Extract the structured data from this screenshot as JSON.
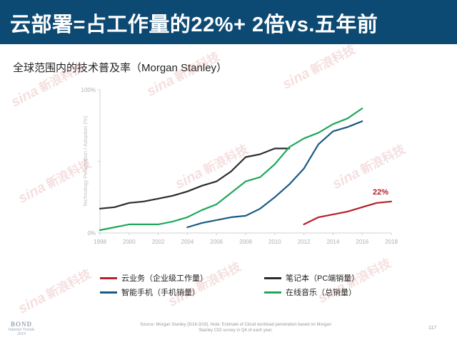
{
  "header": {
    "title": "云部署=占工作量的22%+ 2倍vs.五年前"
  },
  "subtitle": "全球范围内的技术普及率（Morgan Stanley）",
  "chart_data": {
    "type": "line",
    "ylabel": "Technology Penetration / Adoption (%)",
    "xlim": [
      1998,
      2018
    ],
    "ylim": [
      0,
      100
    ],
    "x_ticks": [
      "1998",
      "2000",
      "2002",
      "2004",
      "2006",
      "2008",
      "2010",
      "2012",
      "2014",
      "2016",
      "2018"
    ],
    "y_ticks": [
      {
        "value": 0,
        "label": "0%"
      },
      {
        "value": 50,
        "label": ""
      },
      {
        "value": 100,
        "label": "100%"
      }
    ],
    "grid": false,
    "legend_position": "bottom",
    "series": [
      {
        "name": "云业务（企业级工作量）",
        "color": "#b5202a",
        "points": [
          [
            2012,
            6
          ],
          [
            2013,
            11
          ],
          [
            2014,
            13
          ],
          [
            2015,
            15
          ],
          [
            2016,
            18
          ],
          [
            2017,
            21
          ],
          [
            2018,
            22
          ]
        ]
      },
      {
        "name": "笔记本（PC端销量）",
        "color": "#2b2b2b",
        "points": [
          [
            1998,
            17
          ],
          [
            1999,
            18
          ],
          [
            2000,
            21
          ],
          [
            2001,
            22
          ],
          [
            2002,
            24
          ],
          [
            2003,
            26
          ],
          [
            2004,
            29
          ],
          [
            2005,
            33
          ],
          [
            2006,
            36
          ],
          [
            2007,
            43
          ],
          [
            2008,
            53
          ],
          [
            2009,
            55
          ],
          [
            2010,
            59
          ],
          [
            2011,
            59
          ]
        ]
      },
      {
        "name": "智能手机（手机销量）",
        "color": "#1a5a82",
        "points": [
          [
            2004,
            4
          ],
          [
            2005,
            7
          ],
          [
            2006,
            9
          ],
          [
            2007,
            11
          ],
          [
            2008,
            12
          ],
          [
            2009,
            17
          ],
          [
            2010,
            25
          ],
          [
            2011,
            34
          ],
          [
            2012,
            45
          ],
          [
            2013,
            62
          ],
          [
            2014,
            71
          ],
          [
            2015,
            74
          ],
          [
            2016,
            78
          ]
        ]
      },
      {
        "name": "在线音乐（总销量）",
        "color": "#1fa85c",
        "points": [
          [
            1998,
            2
          ],
          [
            1999,
            4
          ],
          [
            2000,
            6
          ],
          [
            2001,
            6
          ],
          [
            2002,
            6
          ],
          [
            2003,
            8
          ],
          [
            2004,
            11
          ],
          [
            2005,
            16
          ],
          [
            2006,
            20
          ],
          [
            2007,
            28
          ],
          [
            2008,
            36
          ],
          [
            2009,
            39
          ],
          [
            2010,
            48
          ],
          [
            2011,
            60
          ],
          [
            2012,
            66
          ],
          [
            2013,
            70
          ],
          [
            2014,
            76
          ],
          [
            2015,
            80
          ],
          [
            2016,
            87
          ]
        ]
      }
    ],
    "annotations": [
      {
        "text": "22%",
        "x": 2018,
        "y": 22,
        "color": "#b5202a"
      }
    ]
  },
  "footer": {
    "source": "Source: Morgan Stanley (5/16-3/19). Note: Estimate of Cloud workload penetration based on Morgan Stanley CIO survey in Q4 of each year.",
    "page_number": "117"
  },
  "logo": {
    "line1": "BOND",
    "line2": "Internet Trends",
    "line3": "2019"
  },
  "watermark": {
    "brand": "sina",
    "text": "新浪科技"
  }
}
